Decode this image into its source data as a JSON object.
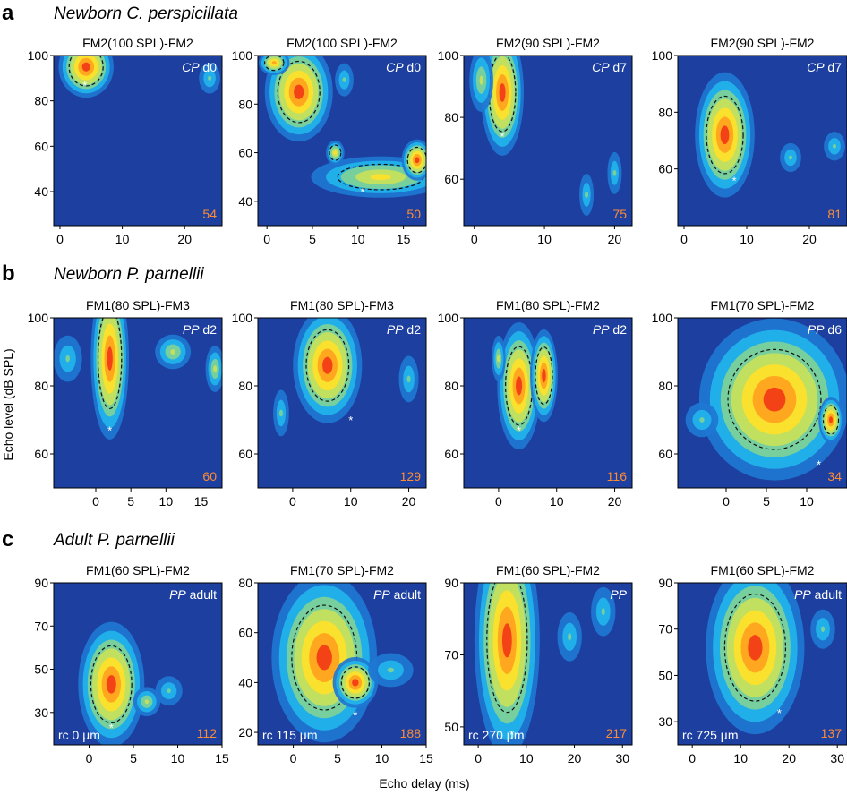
{
  "figure": {
    "ylabel": "Echo level (dB SPL)",
    "xlabel": "Echo delay (ms)"
  },
  "colors": {
    "background": "#1c3fa0",
    "levels": [
      "#1e77d2",
      "#22b4ec",
      "#7fd197",
      "#c9e25a",
      "#ffe12a",
      "#ffa21e",
      "#f23a16"
    ],
    "contour": "#111111",
    "count": "#ff8c33",
    "tag": "#ffffff"
  },
  "chart_data": [
    {
      "type": "heatmap",
      "row": "a",
      "row_title": "Newborn C. perspicillata",
      "title": "FM2(100 SPL)-FM2",
      "tag_species": "CP",
      "tag_rest": "d0",
      "count": "54",
      "xlim": [
        -1,
        26
      ],
      "ylim": [
        25,
        100
      ],
      "xticks": [
        0,
        10,
        20
      ],
      "xtick_labels": [
        "0",
        "10",
        "20"
      ],
      "yticks": [
        40,
        60,
        80,
        100
      ],
      "ytick_labels": [
        "40",
        "60",
        "80",
        "100"
      ],
      "peak_delay_ms": 4,
      "peak_level_db": 87,
      "blobs": [
        {
          "cx": 4.2,
          "cy": 95,
          "rx": 2.6,
          "ry": 8,
          "level": 6
        },
        {
          "cx": 24,
          "cy": 90,
          "rx": 1,
          "ry": 4,
          "level": 2
        }
      ],
      "best": [
        4,
        87
      ]
    },
    {
      "type": "heatmap",
      "row": "a",
      "title": "FM2(100 SPL)-FM2",
      "tag_species": "CP",
      "tag_rest": "d0",
      "count": "50",
      "xlim": [
        -1,
        17.5
      ],
      "ylim": [
        30,
        100
      ],
      "xticks": [
        0,
        5,
        10,
        15
      ],
      "xtick_labels": [
        "0",
        "5",
        "10",
        "15"
      ],
      "yticks": [
        40,
        60,
        80,
        100
      ],
      "ytick_labels": [
        "40",
        "60",
        "80",
        "100"
      ],
      "peak_delay_ms": 10.5,
      "peak_level_db": 44,
      "blobs": [
        {
          "cx": 3.5,
          "cy": 85,
          "rx": 2.2,
          "ry": 12,
          "level": 6
        },
        {
          "cx": 0.8,
          "cy": 97,
          "rx": 1,
          "ry": 3,
          "level": 5
        },
        {
          "cx": 12.5,
          "cy": 50,
          "rx": 4.5,
          "ry": 5,
          "level": 4
        },
        {
          "cx": 16.5,
          "cy": 57,
          "rx": 1,
          "ry": 5,
          "level": 6
        },
        {
          "cx": 7.5,
          "cy": 60,
          "rx": 0.6,
          "ry": 3,
          "level": 4
        },
        {
          "cx": 8.5,
          "cy": 90,
          "rx": 0.6,
          "ry": 4,
          "level": 2
        }
      ],
      "best": [
        10.5,
        44
      ]
    },
    {
      "type": "heatmap",
      "row": "a",
      "title": "FM2(90 SPL)-FM2",
      "tag_species": "CP",
      "tag_rest": "d7",
      "count": "75",
      "xlim": [
        -1.5,
        22.5
      ],
      "ylim": [
        45,
        100
      ],
      "xticks": [
        0,
        10,
        20
      ],
      "xtick_labels": [
        "0",
        "10",
        "20"
      ],
      "yticks": [
        60,
        80,
        100
      ],
      "ytick_labels": [
        "60",
        "80",
        "100"
      ],
      "peak_delay_ms": 4,
      "peak_level_db": 74,
      "blobs": [
        {
          "cx": 4,
          "cy": 88,
          "rx": 1.8,
          "ry": 12,
          "level": 6
        },
        {
          "cx": 1,
          "cy": 92,
          "rx": 1,
          "ry": 6,
          "level": 3
        },
        {
          "cx": 16,
          "cy": 55,
          "rx": 0.6,
          "ry": 4,
          "level": 2
        },
        {
          "cx": 20,
          "cy": 62,
          "rx": 0.6,
          "ry": 4,
          "level": 2
        }
      ],
      "best": [
        4,
        74
      ]
    },
    {
      "type": "heatmap",
      "row": "a",
      "title": "FM2(90 SPL)-FM2",
      "tag_species": "CP",
      "tag_rest": "d7",
      "count": "81",
      "xlim": [
        -1,
        26
      ],
      "ylim": [
        40,
        100
      ],
      "xticks": [
        0,
        10,
        20
      ],
      "xtick_labels": [
        "0",
        "10",
        "20"
      ],
      "yticks": [
        60,
        80,
        100
      ],
      "ytick_labels": [
        "60",
        "80",
        "100"
      ],
      "peak_delay_ms": 8,
      "peak_level_db": 56,
      "blobs": [
        {
          "cx": 6.5,
          "cy": 72,
          "rx": 2.8,
          "ry": 13,
          "level": 6
        },
        {
          "cx": 17,
          "cy": 64,
          "rx": 1,
          "ry": 3,
          "level": 2
        },
        {
          "cx": 24,
          "cy": 68,
          "rx": 1,
          "ry": 3,
          "level": 2
        }
      ],
      "best": [
        8,
        56
      ]
    },
    {
      "type": "heatmap",
      "row": "b",
      "row_title": "Newborn P. parnellii",
      "title": "FM1(80 SPL)-FM3",
      "tag_species": "PP",
      "tag_rest": "d2",
      "count": "60",
      "xlim": [
        -6,
        18
      ],
      "ylim": [
        50,
        100
      ],
      "xticks": [
        0,
        5,
        10,
        15
      ],
      "xtick_labels": [
        "0",
        "5",
        "10",
        "15"
      ],
      "yticks": [
        60,
        80,
        100
      ],
      "ytick_labels": [
        "60",
        "80",
        "100"
      ],
      "peak_delay_ms": 2,
      "peak_level_db": 67,
      "blobs": [
        {
          "cx": 2,
          "cy": 88,
          "rx": 1.6,
          "ry": 14,
          "level": 6
        },
        {
          "cx": -4,
          "cy": 88,
          "rx": 1.2,
          "ry": 4,
          "level": 2
        },
        {
          "cx": 11,
          "cy": 90,
          "rx": 1.5,
          "ry": 3,
          "level": 3
        },
        {
          "cx": 17,
          "cy": 85,
          "rx": 0.8,
          "ry": 4,
          "level": 3
        }
      ],
      "best": [
        2,
        67
      ]
    },
    {
      "type": "heatmap",
      "row": "b",
      "title": "FM1(80 SPL)-FM3",
      "tag_species": "PP",
      "tag_rest": "d2",
      "count": "129",
      "xlim": [
        -6,
        23
      ],
      "ylim": [
        50,
        100
      ],
      "xticks": [
        0,
        10,
        20
      ],
      "xtick_labels": [
        "0",
        "10",
        "20"
      ],
      "yticks": [
        60,
        80,
        100
      ],
      "ytick_labels": [
        "60",
        "80",
        "100"
      ],
      "peak_delay_ms": 10,
      "peak_level_db": 70,
      "blobs": [
        {
          "cx": 6,
          "cy": 86,
          "rx": 3.5,
          "ry": 10,
          "level": 6
        },
        {
          "cx": -2,
          "cy": 72,
          "rx": 0.8,
          "ry": 4,
          "level": 2
        },
        {
          "cx": 20,
          "cy": 82,
          "rx": 1,
          "ry": 4,
          "level": 2
        }
      ],
      "best": [
        10,
        70
      ]
    },
    {
      "type": "heatmap",
      "row": "b",
      "title": "FM1(80 SPL)-FM2",
      "tag_species": "PP",
      "tag_rest": "d2",
      "count": "116",
      "xlim": [
        -6,
        23
      ],
      "ylim": [
        50,
        100
      ],
      "xticks": [
        0,
        10,
        20
      ],
      "xtick_labels": [
        "0",
        "10",
        "20"
      ],
      "yticks": [
        60,
        80,
        100
      ],
      "ytick_labels": [
        "60",
        "80",
        "100"
      ],
      "peak_delay_ms": 3.5,
      "peak_level_db": 67,
      "blobs": [
        {
          "cx": 3.5,
          "cy": 80,
          "rx": 2.2,
          "ry": 11,
          "level": 6
        },
        {
          "cx": 7.8,
          "cy": 83,
          "rx": 1.4,
          "ry": 8,
          "level": 6
        },
        {
          "cx": 0,
          "cy": 88,
          "rx": 0.7,
          "ry": 4,
          "level": 3
        }
      ],
      "best": [
        3.5,
        67
      ]
    },
    {
      "type": "heatmap",
      "row": "b",
      "title": "FM1(70 SPL)-FM2",
      "tag_species": "PP",
      "tag_rest": "d6",
      "count": "34",
      "xlim": [
        -6,
        15
      ],
      "ylim": [
        50,
        100
      ],
      "xticks": [
        0,
        5,
        10
      ],
      "xtick_labels": [
        "0",
        "5",
        "10"
      ],
      "yticks": [
        60,
        80,
        100
      ],
      "ytick_labels": [
        "60",
        "80",
        "100"
      ],
      "peak_delay_ms": 11.5,
      "peak_level_db": 57,
      "blobs": [
        {
          "cx": 6,
          "cy": 76,
          "rx": 5.5,
          "ry": 14,
          "level": 6
        },
        {
          "cx": 13,
          "cy": 70,
          "rx": 0.9,
          "ry": 4,
          "level": 6
        },
        {
          "cx": -3,
          "cy": 70,
          "rx": 1.2,
          "ry": 3,
          "level": 2
        }
      ],
      "best": [
        11.5,
        57
      ]
    },
    {
      "type": "heatmap",
      "row": "c",
      "row_title": "Adult P.  parnellii",
      "title": "FM1(60 SPL)-FM2",
      "tag_species": "PP",
      "tag_rest": "adult",
      "count": "112",
      "rc": "rc 0 µm",
      "xlim": [
        -4,
        15
      ],
      "ylim": [
        15,
        90
      ],
      "xticks": [
        0,
        5,
        10,
        15
      ],
      "xtick_labels": [
        "0",
        "5",
        "10",
        "15"
      ],
      "yticks": [
        30,
        50,
        70,
        90
      ],
      "ytick_labels": [
        "30",
        "50",
        "70",
        "90"
      ],
      "peak_delay_ms": 2.5,
      "peak_level_db": 23,
      "blobs": [
        {
          "cx": 2.5,
          "cy": 43,
          "rx": 2.2,
          "ry": 17,
          "level": 6
        },
        {
          "cx": 6.5,
          "cy": 35,
          "rx": 0.9,
          "ry": 4,
          "level": 3
        },
        {
          "cx": 9,
          "cy": 40,
          "rx": 0.9,
          "ry": 4,
          "level": 2
        }
      ],
      "best": [
        2.5,
        23
      ]
    },
    {
      "type": "heatmap",
      "row": "c",
      "title": "FM1(70 SPL)-FM2",
      "tag_species": "PP",
      "tag_rest": "adult",
      "count": "188",
      "rc": "rc 115 µm",
      "xlim": [
        -4,
        15
      ],
      "ylim": [
        15,
        80
      ],
      "xticks": [
        0,
        5,
        10,
        15
      ],
      "xtick_labels": [
        "0",
        "5",
        "10",
        "15"
      ],
      "yticks": [
        20,
        40,
        60,
        80
      ],
      "ytick_labels": [
        "20",
        "40",
        "60",
        "80"
      ],
      "peak_delay_ms": 7,
      "peak_level_db": 27,
      "blobs": [
        {
          "cx": 3.5,
          "cy": 50,
          "rx": 3.5,
          "ry": 20,
          "level": 6
        },
        {
          "cx": 7,
          "cy": 40,
          "rx": 1.5,
          "ry": 6,
          "level": 6
        },
        {
          "cx": 11,
          "cy": 45,
          "rx": 1.5,
          "ry": 4,
          "level": 2
        }
      ],
      "best": [
        7,
        27
      ]
    },
    {
      "type": "heatmap",
      "row": "c",
      "title": "FM1(60 SPL)-FM2",
      "tag_species": "PP",
      "tag_rest": "",
      "count": "217",
      "rc": "rc 270 µm",
      "xlim": [
        -3,
        32
      ],
      "ylim": [
        45,
        90
      ],
      "xticks": [
        0,
        10,
        20,
        30
      ],
      "xtick_labels": [
        "0",
        "10",
        "20",
        "30"
      ],
      "yticks": [
        50,
        70,
        90
      ],
      "ytick_labels": [
        "50",
        "70",
        "90"
      ],
      "peak_delay_ms": 7,
      "peak_level_db": 48,
      "blobs": [
        {
          "cx": 6,
          "cy": 74,
          "rx": 4,
          "ry": 19,
          "level": 6
        },
        {
          "cx": 19,
          "cy": 75,
          "rx": 1.5,
          "ry": 4,
          "level": 2
        },
        {
          "cx": 26,
          "cy": 82,
          "rx": 1.5,
          "ry": 4,
          "level": 2
        }
      ],
      "best": [
        7,
        48
      ]
    },
    {
      "type": "heatmap",
      "row": "c",
      "title": "FM1(60 SPL)-FM2",
      "tag_species": "PP",
      "tag_rest": "adult",
      "count": "137",
      "rc": "rc 725 µm",
      "xlim": [
        -3,
        32
      ],
      "ylim": [
        20,
        90
      ],
      "xticks": [
        0,
        10,
        20,
        30
      ],
      "xtick_labels": [
        "0",
        "10",
        "20",
        "30"
      ],
      "yticks": [
        30,
        50,
        70,
        90
      ],
      "ytick_labels": [
        "30",
        "50",
        "70",
        "90"
      ],
      "peak_delay_ms": 18,
      "peak_level_db": 34,
      "blobs": [
        {
          "cx": 13,
          "cy": 62,
          "rx": 6,
          "ry": 22,
          "level": 6
        },
        {
          "cx": 27,
          "cy": 70,
          "rx": 1.5,
          "ry": 5,
          "level": 2
        }
      ],
      "best": [
        18,
        34
      ]
    }
  ]
}
